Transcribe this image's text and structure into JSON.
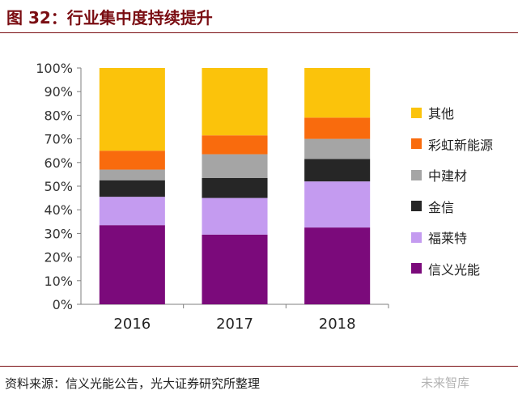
{
  "header": {
    "title": "图 32：行业集中度持续提升"
  },
  "chart_data": {
    "type": "bar",
    "stacked": true,
    "normalized": true,
    "categories": [
      "2016",
      "2017",
      "2018"
    ],
    "yticks": [
      "0%",
      "10%",
      "20%",
      "30%",
      "40%",
      "50%",
      "60%",
      "70%",
      "80%",
      "90%",
      "100%"
    ],
    "ylim": [
      0,
      100
    ],
    "series": [
      {
        "name": "信义光能",
        "color": "#7b0a7b",
        "values": [
          33.5,
          29.5,
          32.5
        ]
      },
      {
        "name": "福莱特",
        "color": "#c49bf0",
        "values": [
          12,
          15.5,
          19.5
        ]
      },
      {
        "name": "金信",
        "color": "#262626",
        "values": [
          7,
          8.5,
          9.5
        ]
      },
      {
        "name": "中建材",
        "color": "#a5a5a5",
        "values": [
          4.5,
          10,
          8.5
        ]
      },
      {
        "name": "彩虹新能源",
        "color": "#f96b0d",
        "values": [
          8,
          8,
          9
        ]
      },
      {
        "name": "其他",
        "color": "#fbc30b",
        "values": [
          35,
          28.5,
          21
        ]
      }
    ],
    "legend_position": "right",
    "grid": false
  },
  "footer": {
    "source": "资料来源：信义光能公告，光大证券研究所整理",
    "watermark": "未来智库"
  }
}
